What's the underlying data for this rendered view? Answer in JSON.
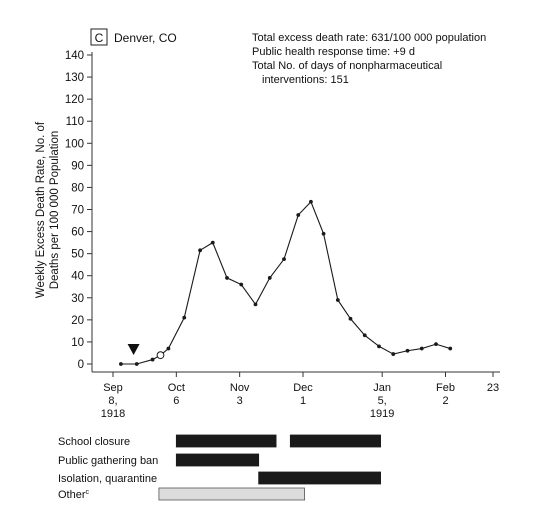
{
  "panel": {
    "letter": "C",
    "city": "Denver, CO"
  },
  "info": {
    "line1": "Total excess death rate: 631/100 000 population",
    "line2": "Public health response time: +9 d",
    "line3": "Total No. of days of nonpharmaceutical",
    "line4": "interventions: 151"
  },
  "chart_data": {
    "type": "line",
    "ylabel_line1": "Weekly Excess Death Rate, No. of",
    "ylabel_line2": "Deaths per 100 000 Population",
    "ylim": [
      0,
      140
    ],
    "yticks": [
      "0",
      "10",
      "20",
      "30",
      "40",
      "50",
      "60",
      "70",
      "80",
      "90",
      "100",
      "110",
      "120",
      "130",
      "140"
    ],
    "xticks": [
      {
        "week": 0,
        "lines": [
          "Sep",
          "8,",
          "1918"
        ]
      },
      {
        "week": 4,
        "lines": [
          "Oct",
          "6"
        ]
      },
      {
        "week": 8,
        "lines": [
          "Nov",
          "3"
        ]
      },
      {
        "week": 12,
        "lines": [
          "Dec",
          "1"
        ]
      },
      {
        "week": 17,
        "lines": [
          "Jan",
          "5,",
          "1919"
        ]
      },
      {
        "week": 21,
        "lines": [
          "Feb",
          "2"
        ]
      },
      {
        "week": 24,
        "lines": [
          "23"
        ]
      }
    ],
    "series": [
      {
        "points": [
          [
            0.5,
            0
          ],
          [
            1.5,
            0
          ],
          [
            2.5,
            2
          ],
          [
            3.0,
            4
          ],
          [
            3.5,
            7
          ],
          [
            4.5,
            21
          ],
          [
            5.5,
            51.5
          ],
          [
            6.3,
            55
          ],
          [
            7.2,
            39
          ],
          [
            8.1,
            36
          ],
          [
            9.0,
            27
          ],
          [
            9.9,
            39
          ],
          [
            10.8,
            47.5
          ],
          [
            11.7,
            67.5
          ],
          [
            12.5,
            73.5
          ],
          [
            13.3,
            59
          ],
          [
            14.2,
            29
          ],
          [
            15.0,
            20.5
          ],
          [
            15.9,
            13
          ],
          [
            16.8,
            8
          ],
          [
            17.7,
            4.5
          ],
          [
            18.6,
            6
          ],
          [
            19.5,
            7
          ],
          [
            20.4,
            9
          ],
          [
            21.3,
            7
          ]
        ]
      }
    ],
    "markers": {
      "triangle_week": 1.3,
      "open_circle_week": 3.0
    },
    "bars": [
      {
        "label": "School closure",
        "superscript": "",
        "segments": [
          [
            4.0,
            10.3
          ],
          [
            11.2,
            16.9
          ]
        ],
        "color": "#1a1a1a"
      },
      {
        "label": "Public gathering ban",
        "superscript": "",
        "segments": [
          [
            4.0,
            9.2
          ]
        ],
        "color": "#1a1a1a"
      },
      {
        "label": "Isolation, quarantine",
        "superscript": "",
        "segments": [
          [
            9.2,
            16.9
          ]
        ],
        "color": "#1a1a1a"
      },
      {
        "label": "Other",
        "superscript": "c",
        "segments": [
          [
            2.9,
            12.1
          ]
        ],
        "color": "#dcdcdc"
      }
    ]
  }
}
